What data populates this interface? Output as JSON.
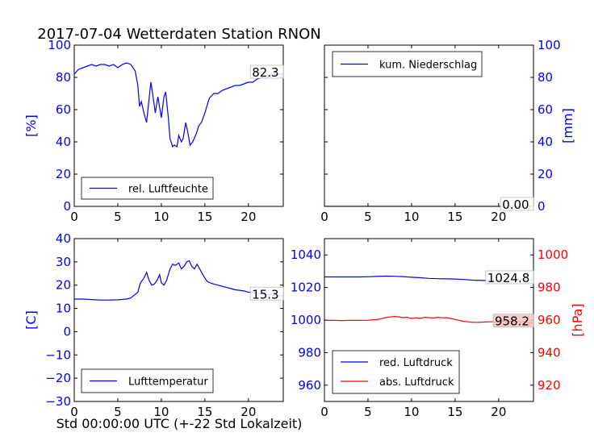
{
  "figure": {
    "title": "2017-07-04 Wetterdaten Station RNON",
    "xlabel": "Std 00:00:00 UTC (+-22 Std Lokalzeit)"
  },
  "chart_data": [
    {
      "id": "humidity",
      "type": "line",
      "ylabel": "[%]",
      "ylabel_color": "#0000ff",
      "ylabel_side": "left",
      "xlim": [
        0,
        24
      ],
      "ylim": [
        0,
        100
      ],
      "xticks": [
        0,
        5,
        10,
        15,
        20
      ],
      "yticks": [
        0,
        20,
        40,
        60,
        80,
        100
      ],
      "legend_position": "lower-left",
      "annotation": "82.3",
      "series": [
        {
          "name": "rel. Luftfeuchte",
          "color": "#0000ff",
          "x": [
            0,
            0.5,
            1,
            1.5,
            2,
            2.5,
            3,
            3.5,
            4,
            4.5,
            5,
            5.5,
            6,
            6.5,
            7,
            7.3,
            7.5,
            7.7,
            8,
            8.3,
            8.5,
            8.8,
            9,
            9.3,
            9.6,
            10,
            10.3,
            10.5,
            10.8,
            11,
            11.3,
            11.5,
            11.8,
            12,
            12.3,
            12.5,
            12.8,
            13,
            13.3,
            13.6,
            14,
            14.3,
            14.6,
            15,
            15.5,
            16,
            16.5,
            17,
            17.5,
            18,
            18.5,
            19,
            19.5,
            20,
            20.5,
            21,
            21.5,
            22,
            22.5,
            23,
            23.5,
            24
          ],
          "values": [
            82,
            85,
            86,
            87,
            88,
            87,
            88,
            88,
            87,
            88,
            86,
            88,
            89,
            88,
            84,
            75,
            62,
            65,
            58,
            52,
            62,
            77,
            70,
            58,
            68,
            55,
            68,
            71,
            55,
            42,
            37,
            38,
            37,
            44,
            40,
            42,
            52,
            47,
            38,
            40,
            45,
            50,
            52,
            58,
            67,
            70,
            70,
            72,
            73,
            74,
            75,
            75,
            76,
            77,
            77,
            79,
            80,
            80,
            81,
            82,
            82,
            82
          ]
        }
      ]
    },
    {
      "id": "precipitation",
      "type": "line",
      "ylabel": "[mm]",
      "ylabel_color": "#0000ff",
      "ylabel_side": "right",
      "xlim": [
        0,
        24
      ],
      "ylim": [
        0,
        100
      ],
      "xticks": [
        0,
        5,
        10,
        15,
        20
      ],
      "yticks": [
        0,
        20,
        40,
        60,
        80,
        100
      ],
      "legend_position": "upper-left",
      "annotation": "0.00",
      "series": [
        {
          "name": "kum. Niederschlag",
          "color": "#0000ff",
          "x": [
            0,
            24
          ],
          "values": [
            0,
            0
          ]
        }
      ]
    },
    {
      "id": "temperature",
      "type": "line",
      "ylabel": "[C]",
      "ylabel_color": "#0000ff",
      "ylabel_side": "left",
      "xlim": [
        0,
        24
      ],
      "ylim": [
        -30,
        40
      ],
      "xticks": [
        0,
        5,
        10,
        15,
        20
      ],
      "yticks": [
        -30,
        -20,
        -10,
        0,
        10,
        20,
        30,
        40
      ],
      "legend_position": "lower-left",
      "annotation": "15.3",
      "series": [
        {
          "name": "Lufttemperatur",
          "color": "#0000ff",
          "x": [
            0,
            1,
            2,
            3,
            4,
            5,
            6,
            6.5,
            7,
            7.3,
            7.6,
            8,
            8.3,
            8.6,
            8.9,
            9.2,
            9.5,
            9.8,
            10,
            10.3,
            10.6,
            11,
            11.3,
            11.6,
            12,
            12.3,
            12.6,
            12.9,
            13.2,
            13.5,
            13.8,
            14.1,
            14.4,
            14.7,
            15,
            15.3,
            15.6,
            16,
            16.5,
            17,
            17.5,
            18,
            18.5,
            19,
            19.5,
            20,
            20.5,
            21,
            21.5,
            22,
            22.5,
            23,
            23.5,
            24
          ],
          "values": [
            14,
            14,
            13.8,
            13.6,
            13.6,
            13.7,
            14,
            14.5,
            16,
            17,
            21,
            23,
            25.5,
            22,
            20,
            20.5,
            22,
            24.5,
            21,
            20,
            22,
            27,
            29,
            28.5,
            29.5,
            27,
            28,
            30,
            30.5,
            28,
            27,
            29,
            27,
            25,
            23,
            21.5,
            21,
            20.5,
            20,
            19.5,
            19,
            18.5,
            18,
            17.8,
            17.5,
            17,
            16.8,
            16.5,
            16.3,
            16,
            15.8,
            15.6,
            15.5,
            15.3
          ]
        }
      ]
    },
    {
      "id": "pressure",
      "type": "line",
      "xlim": [
        0,
        24
      ],
      "xticks": [
        0,
        5,
        10,
        15,
        20
      ],
      "left_axis": {
        "ylim": [
          950,
          1050
        ],
        "yticks": [
          960,
          980,
          1000,
          1020,
          1040
        ],
        "color": "#0000ff"
      },
      "right_axis": {
        "label": "[hPa]",
        "ylim": [
          910,
          1010
        ],
        "yticks": [
          920,
          940,
          960,
          980,
          1000
        ],
        "color": "#ff0000"
      },
      "legend_position": "lower-left",
      "annotations": [
        "1024.8",
        "958.2"
      ],
      "annotation_bg": [
        "#ffffff",
        "#f4c2c2"
      ],
      "series": [
        {
          "name": "red. Luftdruck",
          "color": "#0000ff",
          "axis": "left",
          "x": [
            0,
            2,
            4,
            5,
            6,
            7,
            8,
            9,
            10,
            11,
            12,
            13,
            14,
            15,
            16,
            17,
            18,
            19,
            20,
            21,
            22,
            23,
            24
          ],
          "values": [
            1026.5,
            1026.5,
            1026.5,
            1026.6,
            1026.8,
            1027.0,
            1026.9,
            1026.7,
            1026.3,
            1026.0,
            1025.6,
            1025.4,
            1025.3,
            1025.2,
            1024.9,
            1024.5,
            1024.3,
            1024.3,
            1024.3,
            1024.5,
            1024.6,
            1024.7,
            1024.8
          ]
        },
        {
          "name": "abs. Luftdruck",
          "color": "#ff0000",
          "axis": "right",
          "x": [
            0,
            1,
            2,
            3,
            4,
            5,
            6,
            6.5,
            7,
            7.5,
            8,
            8.5,
            9,
            9.5,
            10,
            10.5,
            11,
            11.5,
            12,
            12.5,
            13,
            13.5,
            14,
            14.5,
            15,
            15.5,
            16,
            16.5,
            17,
            17.5,
            18,
            18.5,
            19,
            20,
            21,
            22,
            23,
            24
          ],
          "values": [
            959.8,
            959.8,
            959.7,
            959.8,
            959.8,
            959.9,
            960.3,
            960.8,
            961.5,
            961.9,
            962.2,
            962.0,
            961.5,
            961.7,
            961.0,
            961.4,
            961.0,
            961.7,
            961.5,
            961.3,
            961.7,
            961.4,
            961.5,
            961.0,
            960.4,
            959.8,
            959.2,
            958.9,
            958.6,
            958.6,
            958.7,
            958.8,
            958.9,
            958.9,
            959.0,
            959.0,
            958.9,
            958.2
          ]
        }
      ]
    }
  ]
}
